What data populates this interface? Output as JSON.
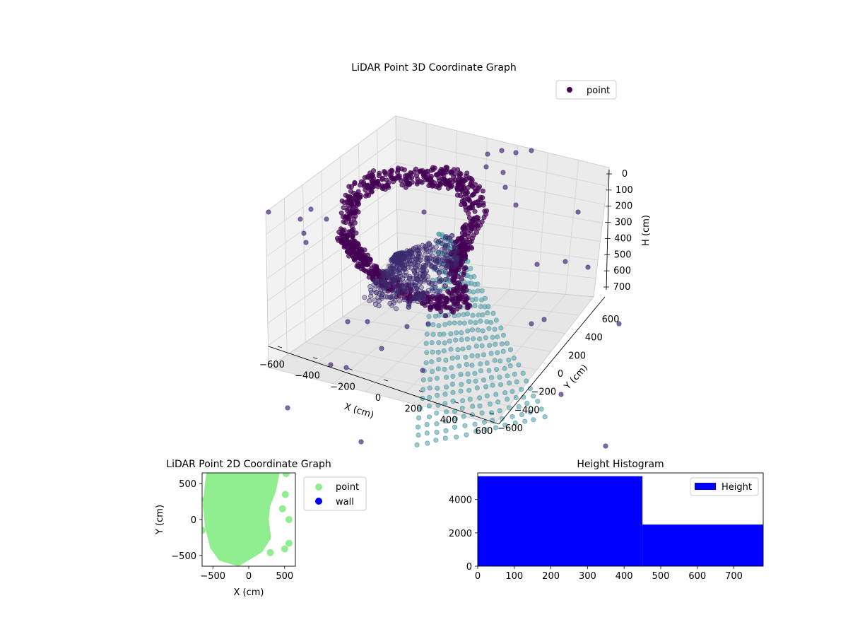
{
  "chart_data": [
    {
      "type": "scatter",
      "subtype": "3d",
      "title": "LiDAR Point 3D Coordinate Graph",
      "xlabel": "X (cm)",
      "ylabel": "Y (cm)",
      "zlabel": "H (cm)",
      "xlim": [
        -700,
        700
      ],
      "ylim": [
        -700,
        700
      ],
      "zlim": [
        0,
        780
      ],
      "z_inverted": true,
      "xticks": [
        "−600",
        "−400",
        "−200",
        "0",
        "200",
        "400",
        "600"
      ],
      "yticks": [
        "−600",
        "−400",
        "−200",
        "0",
        "200",
        "400",
        "600"
      ],
      "zticks": [
        "0",
        "100",
        "200",
        "300",
        "400",
        "500",
        "600",
        "700"
      ],
      "legend": {
        "location": "top-right",
        "entries": [
          {
            "label": "point",
            "color": "#440154"
          }
        ]
      },
      "colormap": "viridis",
      "grid": true
    },
    {
      "type": "scatter",
      "title": "LiDAR Point 2D Coordinate Graph",
      "xlabel": "X (cm)",
      "ylabel": "Y (cm)",
      "xlim": [
        -650,
        650
      ],
      "ylim": [
        -650,
        650
      ],
      "xticks": [
        "−500",
        "0",
        "500"
      ],
      "yticks": [
        "500",
        "0",
        "−500"
      ],
      "legend": {
        "location": "outside-right",
        "entries": [
          {
            "label": "point",
            "color": "#90ee90"
          },
          {
            "label": "wall",
            "color": "#0000ff"
          }
        ]
      },
      "series": [
        {
          "name": "point",
          "color": "#90ee90",
          "outline": [
            [
              -540,
              650
            ],
            [
              380,
              650
            ],
            [
              330,
              400
            ],
            [
              250,
              200
            ],
            [
              230,
              0
            ],
            [
              260,
              -250
            ],
            [
              150,
              -420
            ],
            [
              -20,
              -520
            ],
            [
              -150,
              -600
            ],
            [
              -380,
              -530
            ],
            [
              -490,
              -380
            ],
            [
              -560,
              -100
            ],
            [
              -590,
              200
            ],
            [
              -560,
              500
            ]
          ],
          "outliers": [
            [
              520,
              640
            ],
            [
              510,
              350
            ],
            [
              470,
              150
            ],
            [
              -650,
              -150
            ],
            [
              -600,
              280
            ],
            [
              560,
              0
            ],
            [
              560,
              -330
            ],
            [
              500,
              -410
            ],
            [
              300,
              -460
            ],
            [
              200,
              -320
            ]
          ]
        },
        {
          "name": "wall",
          "color": "#0000ff",
          "points": []
        }
      ]
    },
    {
      "type": "bar",
      "subtype": "histogram",
      "title": "Height Histogram",
      "xlim": [
        0,
        780
      ],
      "ylim": [
        0,
        5600
      ],
      "xticks": [
        "0",
        "100",
        "200",
        "300",
        "400",
        "500",
        "600",
        "700"
      ],
      "yticks": [
        "0",
        "2000",
        "4000"
      ],
      "legend": {
        "location": "top-right",
        "entries": [
          {
            "label": "Height",
            "color": "#0000ff"
          }
        ]
      },
      "series": [
        {
          "name": "Height",
          "color": "#0000ff",
          "bins": [
            {
              "start": 0,
              "end": 450,
              "count": 5400
            },
            {
              "start": 450,
              "end": 780,
              "count": 2500
            }
          ]
        }
      ]
    }
  ]
}
